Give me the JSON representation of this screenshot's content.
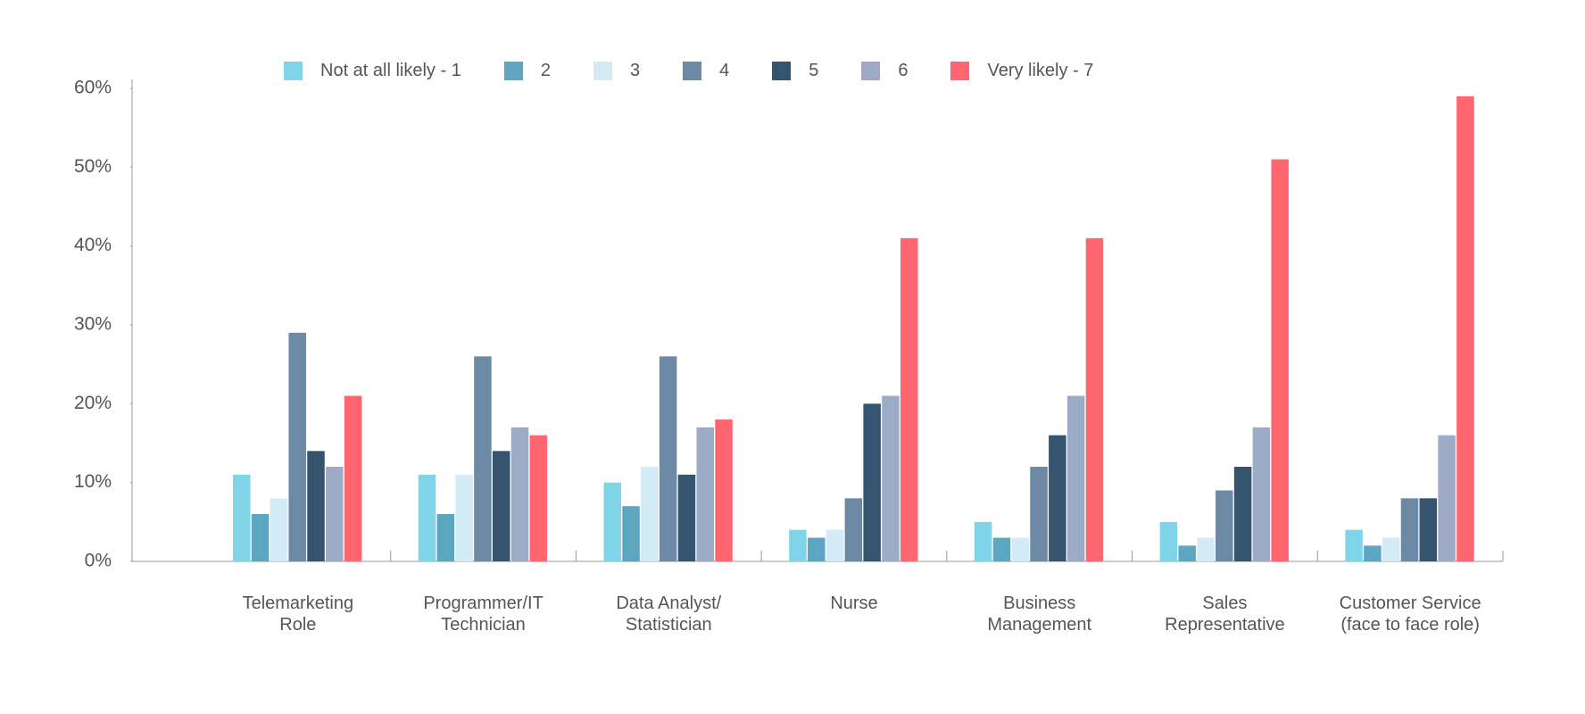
{
  "chart_data": {
    "type": "bar",
    "categories": [
      "Telemarketing Role",
      "Programmer/IT Technician",
      "Data Analyst/ Statistician",
      "Nurse",
      "Business Management",
      "Sales Representative",
      "Customer Service (face to face role)"
    ],
    "series": [
      {
        "name": "Not at all likely - 1",
        "color": "#7fd4e7",
        "values": [
          11,
          11,
          10,
          4,
          5,
          5,
          4
        ]
      },
      {
        "name": "2",
        "color": "#5ca6c2",
        "values": [
          6,
          6,
          7,
          3,
          3,
          2,
          2
        ]
      },
      {
        "name": "3",
        "color": "#d3ebf4",
        "values": [
          8,
          11,
          12,
          4,
          3,
          3,
          3
        ]
      },
      {
        "name": "4",
        "color": "#6c8aa6",
        "values": [
          29,
          26,
          26,
          8,
          12,
          9,
          8
        ]
      },
      {
        "name": "5",
        "color": "#34546f",
        "values": [
          14,
          14,
          11,
          20,
          16,
          12,
          8
        ]
      },
      {
        "name": "6",
        "color": "#9eabc6",
        "values": [
          12,
          17,
          17,
          21,
          21,
          17,
          16
        ]
      },
      {
        "name": "Very likely - 7",
        "color": "#ff6670",
        "values": [
          21,
          16,
          18,
          41,
          41,
          51,
          59
        ]
      }
    ],
    "ylim": [
      0,
      60
    ],
    "yticks": [
      {
        "value": 0,
        "label": "0%"
      },
      {
        "value": 10,
        "label": "10%"
      },
      {
        "value": 20,
        "label": "20%"
      },
      {
        "value": 30,
        "label": "30%"
      },
      {
        "value": 40,
        "label": "40%"
      },
      {
        "value": 50,
        "label": "50%"
      },
      {
        "value": 60,
        "label": "60%"
      }
    ],
    "legend": "top"
  }
}
